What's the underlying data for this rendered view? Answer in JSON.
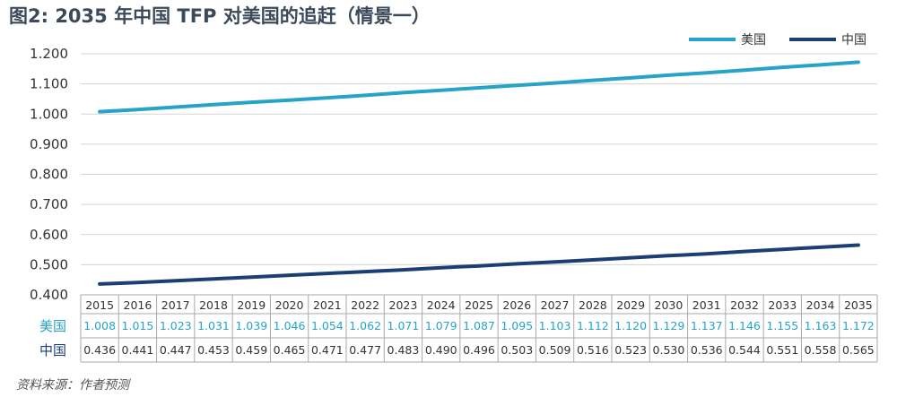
{
  "title": "图2: 2035 年中国 TFP 对美国的追赶（情景一）",
  "source": "资料来源：作者预测",
  "colors": {
    "usa": "#27a3c9",
    "china": "#1b3f75",
    "grid": "#d3d3d3",
    "table_border": "#a9a9a9"
  },
  "chart_data": {
    "type": "line",
    "title": "图2: 2035 年中国 TFP 对美国的追赶（情景一）",
    "x": [
      "2015",
      "2016",
      "2017",
      "2018",
      "2019",
      "2020",
      "2021",
      "2022",
      "2023",
      "2024",
      "2025",
      "2026",
      "2027",
      "2028",
      "2029",
      "2030",
      "2031",
      "2032",
      "2033",
      "2034",
      "2035"
    ],
    "yticks": [
      "1.200",
      "1.100",
      "1.000",
      "0.900",
      "0.800",
      "0.700",
      "0.600",
      "0.500",
      "0.400"
    ],
    "ylim": [
      0.4,
      1.2
    ],
    "grid": true,
    "legend": "top-right",
    "series": [
      {
        "name": "美国",
        "key": "usa",
        "values": [
          1.008,
          1.015,
          1.023,
          1.031,
          1.039,
          1.046,
          1.054,
          1.062,
          1.071,
          1.079,
          1.087,
          1.095,
          1.103,
          1.112,
          1.12,
          1.129,
          1.137,
          1.146,
          1.155,
          1.163,
          1.172
        ],
        "labels": [
          "1.008",
          "1.015",
          "1.023",
          "1.031",
          "1.039",
          "1.046",
          "1.054",
          "1.062",
          "1.071",
          "1.079",
          "1.087",
          "1.095",
          "1.103",
          "1.112",
          "1.120",
          "1.129",
          "1.137",
          "1.146",
          "1.155",
          "1.163",
          "1.172"
        ]
      },
      {
        "name": "中国",
        "key": "china",
        "values": [
          0.436,
          0.441,
          0.447,
          0.453,
          0.459,
          0.465,
          0.471,
          0.477,
          0.483,
          0.49,
          0.496,
          0.503,
          0.509,
          0.516,
          0.523,
          0.53,
          0.536,
          0.544,
          0.551,
          0.558,
          0.565
        ],
        "labels": [
          "0.436",
          "0.441",
          "0.447",
          "0.453",
          "0.459",
          "0.465",
          "0.471",
          "0.477",
          "0.483",
          "0.490",
          "0.496",
          "0.503",
          "0.509",
          "0.516",
          "0.523",
          "0.530",
          "0.536",
          "0.544",
          "0.551",
          "0.558",
          "0.565"
        ]
      }
    ]
  }
}
